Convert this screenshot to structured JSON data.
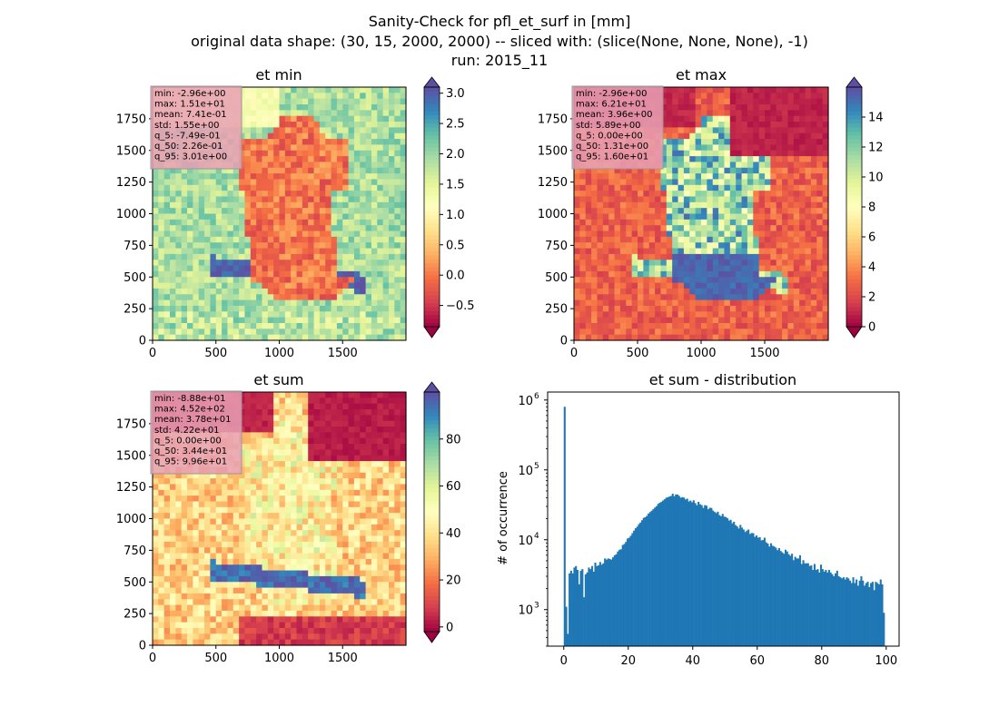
{
  "suptitle": {
    "line1": "Sanity-Check for pfl_et_surf in [mm]",
    "line2": "original data shape: (30, 15, 2000, 2000) -- sliced with: (slice(None, None, None), -1)",
    "line3": "run: 2015_11"
  },
  "colors": {
    "hist_bar": "#1f77b4",
    "stats_box_bg": "#e8a0b4",
    "spectral": [
      "#9e0142",
      "#d53e4f",
      "#f46d43",
      "#fdae61",
      "#fee08b",
      "#ffffbf",
      "#e6f598",
      "#abdda4",
      "#66c2a5",
      "#3288bd",
      "#5e4fa2"
    ]
  },
  "chart_data": [
    {
      "type": "heatmap",
      "title": "et min",
      "xlim": [
        0,
        2000
      ],
      "ylim": [
        0,
        2000
      ],
      "xticks": [
        "0",
        "500",
        "1000",
        "1500"
      ],
      "yticks": [
        "0",
        "250",
        "500",
        "750",
        "1000",
        "1250",
        "1500",
        "1750"
      ],
      "colormap": "Spectral",
      "colorbar": {
        "range": [
          -0.85,
          3.1
        ],
        "extend": "both",
        "ticks": [
          -0.5,
          0.0,
          0.5,
          1.0,
          1.5,
          2.0,
          2.5,
          3.0
        ],
        "tick_labels": [
          "−0.5",
          "0.0",
          "0.5",
          "1.0",
          "1.5",
          "2.0",
          "2.5",
          "3.0"
        ]
      },
      "stats": [
        "min: -2.96e+00",
        "max: 1.51e+01",
        "mean: 7.41e-01",
        "std: 1.55e+00",
        "q_5: -7.49e-01",
        "q_50: 2.26e-01",
        "q_95: 3.01e+00"
      ]
    },
    {
      "type": "heatmap",
      "title": "et max",
      "xlim": [
        0,
        2000
      ],
      "ylim": [
        0,
        2000
      ],
      "xticks": [
        "0",
        "500",
        "1000",
        "1500"
      ],
      "yticks": [
        "0",
        "250",
        "500",
        "750",
        "1000",
        "1250",
        "1500",
        "1750"
      ],
      "colormap": "Spectral",
      "colorbar": {
        "range": [
          0,
          16
        ],
        "extend": "both",
        "ticks": [
          0,
          2,
          4,
          6,
          8,
          10,
          12,
          14
        ],
        "tick_labels": [
          "0",
          "2",
          "4",
          "6",
          "8",
          "10",
          "12",
          "14"
        ]
      },
      "stats": [
        "min: -2.96e+00",
        "max: 6.21e+01",
        "mean: 3.96e+00",
        "std: 5.89e+00",
        "q_5: 0.00e+00",
        "q_50: 1.31e+00",
        "q_95: 1.60e+01"
      ]
    },
    {
      "type": "heatmap",
      "title": "et sum",
      "xlim": [
        0,
        2000
      ],
      "ylim": [
        0,
        2000
      ],
      "xticks": [
        "0",
        "500",
        "1000",
        "1500"
      ],
      "yticks": [
        "0",
        "250",
        "500",
        "750",
        "1000",
        "1250",
        "1500",
        "1750"
      ],
      "colormap": "Spectral",
      "colorbar": {
        "range": [
          -2,
          100
        ],
        "extend": "both",
        "ticks": [
          0,
          20,
          40,
          60,
          80
        ],
        "tick_labels": [
          "0",
          "20",
          "40",
          "60",
          "80"
        ]
      },
      "stats": [
        "min: -8.88e+01",
        "max: 4.52e+02",
        "mean: 3.78e+01",
        "std: 4.22e+01",
        "q_5: 0.00e+00",
        "q_50: 3.44e+01",
        "q_95: 9.96e+01"
      ]
    },
    {
      "type": "bar",
      "title": "et sum - distribution",
      "ylabel": "# of occurrence",
      "yscale": "log",
      "xlim": [
        -5,
        104
      ],
      "ylim": [
        300,
        1300000
      ],
      "xticks": [
        0,
        20,
        40,
        60,
        80,
        100
      ],
      "xtick_labels": [
        "0",
        "20",
        "40",
        "60",
        "80",
        "100"
      ],
      "yticks": [
        1000,
        10000,
        100000,
        1000000
      ],
      "ytick_labels": [
        [
          "10",
          "3"
        ],
        [
          "10",
          "4"
        ],
        [
          "10",
          "5"
        ],
        [
          "10",
          "6"
        ]
      ],
      "bin_width": 0.5,
      "x": [
        0,
        0.5,
        1,
        1.5,
        2,
        2.5,
        3,
        3.5,
        4,
        4.5,
        5,
        5.5,
        6,
        6.5,
        7,
        7.5,
        8,
        8.5,
        9,
        9.5,
        10,
        10.5,
        11,
        11.5,
        12,
        12.5,
        13,
        13.5,
        14,
        14.5,
        15,
        15.5,
        16,
        16.5,
        17,
        17.5,
        18,
        18.5,
        19,
        19.5,
        20,
        20.5,
        21,
        21.5,
        22,
        22.5,
        23,
        23.5,
        24,
        24.5,
        25,
        25.5,
        26,
        26.5,
        27,
        27.5,
        28,
        28.5,
        29,
        29.5,
        30,
        30.5,
        31,
        31.5,
        32,
        32.5,
        33,
        33.5,
        34,
        34.5,
        35,
        35.5,
        36,
        36.5,
        37,
        37.5,
        38,
        38.5,
        39,
        39.5,
        40,
        40.5,
        41,
        41.5,
        42,
        42.5,
        43,
        43.5,
        44,
        44.5,
        45,
        45.5,
        46,
        46.5,
        47,
        47.5,
        48,
        48.5,
        49,
        49.5,
        50,
        50.5,
        51,
        51.5,
        52,
        52.5,
        53,
        53.5,
        54,
        54.5,
        55,
        55.5,
        56,
        56.5,
        57,
        57.5,
        58,
        58.5,
        59,
        59.5,
        60,
        60.5,
        61,
        61.5,
        62,
        62.5,
        63,
        63.5,
        64,
        64.5,
        65,
        65.5,
        66,
        66.5,
        67,
        67.5,
        68,
        68.5,
        69,
        69.5,
        70,
        70.5,
        71,
        71.5,
        72,
        72.5,
        73,
        73.5,
        74,
        74.5,
        75,
        75.5,
        76,
        76.5,
        77,
        77.5,
        78,
        78.5,
        79,
        79.5,
        80,
        80.5,
        81,
        81.5,
        82,
        82.5,
        83,
        83.5,
        84,
        84.5,
        85,
        85.5,
        86,
        86.5,
        87,
        87.5,
        88,
        88.5,
        89,
        89.5,
        90,
        90.5,
        91,
        91.5,
        92,
        92.5,
        93,
        93.5,
        94,
        94.5,
        95,
        95.5,
        96,
        96.5,
        97,
        97.5,
        98,
        98.5,
        99
      ],
      "values": [
        800000,
        1100,
        450,
        3300,
        3600,
        3300,
        4000,
        4200,
        3700,
        2300,
        3600,
        3800,
        1500,
        3200,
        3400,
        4000,
        3800,
        4200,
        3500,
        4700,
        4200,
        4300,
        4800,
        4400,
        4600,
        5400,
        5200,
        5400,
        5300,
        5200,
        5600,
        6000,
        6200,
        6800,
        7200,
        7300,
        8400,
        8700,
        9300,
        10400,
        10700,
        11400,
        12400,
        13500,
        14600,
        15400,
        16700,
        17600,
        19000,
        20600,
        21000,
        22000,
        23700,
        24900,
        26000,
        27400,
        28900,
        30300,
        32600,
        33800,
        34800,
        36400,
        38000,
        39900,
        40600,
        41500,
        42300,
        45600,
        42000,
        44500,
        44300,
        42400,
        40000,
        40700,
        40100,
        37700,
        38700,
        35300,
        36400,
        34400,
        36700,
        33500,
        31200,
        34900,
        32200,
        31300,
        28600,
        31300,
        30700,
        27300,
        28700,
        28500,
        26200,
        25000,
        24100,
        25200,
        22500,
        21700,
        23400,
        21400,
        21100,
        20300,
        18800,
        19300,
        17200,
        18100,
        16200,
        15500,
        14500,
        16300,
        14900,
        14000,
        12900,
        13500,
        14000,
        12100,
        12500,
        12400,
        11000,
        11500,
        10700,
        10900,
        9800,
        9900,
        10700,
        9200,
        8800,
        8000,
        8900,
        8200,
        8000,
        7700,
        7100,
        7600,
        6900,
        6600,
        6300,
        7200,
        6800,
        6200,
        5900,
        6300,
        5100,
        5700,
        5400,
        5400,
        6000,
        4500,
        5100,
        4600,
        4600,
        4600,
        4200,
        4300,
        3700,
        4500,
        3700,
        3800,
        3400,
        4400,
        3800,
        3500,
        3700,
        3400,
        3700,
        3400,
        3200,
        3000,
        3300,
        3600,
        3000,
        2900,
        2800,
        2900,
        2700,
        2900,
        2800,
        2600,
        2400,
        2900,
        2400,
        2700,
        2200,
        2600,
        3000,
        2600,
        2200,
        2400,
        2500,
        2100,
        2400,
        2500,
        1900,
        2500,
        2400,
        2300,
        2700,
        2300,
        900
      ]
    }
  ]
}
